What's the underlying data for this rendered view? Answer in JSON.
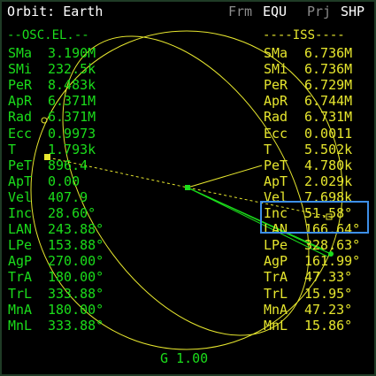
{
  "header": {
    "title": "Orbit: Earth",
    "buttons": [
      {
        "label": "Frm",
        "active": false
      },
      {
        "label": "EQU",
        "active": true
      },
      {
        "label": "Prj",
        "active": false
      },
      {
        "label": "SHP",
        "active": true
      }
    ]
  },
  "left_panel": {
    "heading": "--OSC.EL.--",
    "color": "#1bdc1b",
    "rows": [
      {
        "label": "SMa",
        "value": "3.190M"
      },
      {
        "label": "SMi",
        "value": "232.5k"
      },
      {
        "label": "PeR",
        "value": "8.483k"
      },
      {
        "label": "ApR",
        "value": "6.371M"
      },
      {
        "label": "Rad",
        "value": "6.371M"
      },
      {
        "label": "Ecc",
        "value": "0.9973"
      },
      {
        "label": "T",
        "value": "1.793k"
      },
      {
        "label": "PeT",
        "value": "896.4"
      },
      {
        "label": "ApT",
        "value": "0.00"
      },
      {
        "label": "Vel",
        "value": "407.9"
      },
      {
        "label": "Inc",
        "value": "28.60°"
      },
      {
        "label": "LAN",
        "value": "243.88°"
      },
      {
        "label": "LPe",
        "value": "153.88°"
      },
      {
        "label": "AgP",
        "value": "270.00°"
      },
      {
        "label": "TrA",
        "value": "180.00°"
      },
      {
        "label": "TrL",
        "value": "333.88°"
      },
      {
        "label": "MnA",
        "value": "180.00°"
      },
      {
        "label": "MnL",
        "value": "333.88°"
      }
    ]
  },
  "right_panel": {
    "heading": "----ISS----",
    "color": "#e6e62e",
    "rows": [
      {
        "label": "SMa",
        "value": "6.736M"
      },
      {
        "label": "SMi",
        "value": "6.736M"
      },
      {
        "label": "PeR",
        "value": "6.729M"
      },
      {
        "label": "ApR",
        "value": "6.744M"
      },
      {
        "label": "Rad",
        "value": "6.731M"
      },
      {
        "label": "Ecc",
        "value": "0.0011"
      },
      {
        "label": "T",
        "value": "5.502k"
      },
      {
        "label": "PeT",
        "value": "4.780k"
      },
      {
        "label": "ApT",
        "value": "2.029k"
      },
      {
        "label": "Vel",
        "value": "7.698k"
      },
      {
        "label": "Inc",
        "value": "51.58°"
      },
      {
        "label": "LAN",
        "value": "166.64°"
      },
      {
        "label": "LPe",
        "value": "328.63°"
      },
      {
        "label": "AgP",
        "value": "161.99°"
      },
      {
        "label": "TrA",
        "value": "47.33°"
      },
      {
        "label": "TrL",
        "value": "15.95°"
      },
      {
        "label": "MnA",
        "value": "47.23°"
      },
      {
        "label": "MnL",
        "value": "15.86°"
      }
    ]
  },
  "footer": {
    "scale_label": "G 1.00"
  },
  "colors": {
    "own_orbit": "#1bdc1b",
    "target_orbit": "#e6e62e",
    "selection": "#3d8fe8",
    "planet": "#1bdc1b"
  }
}
